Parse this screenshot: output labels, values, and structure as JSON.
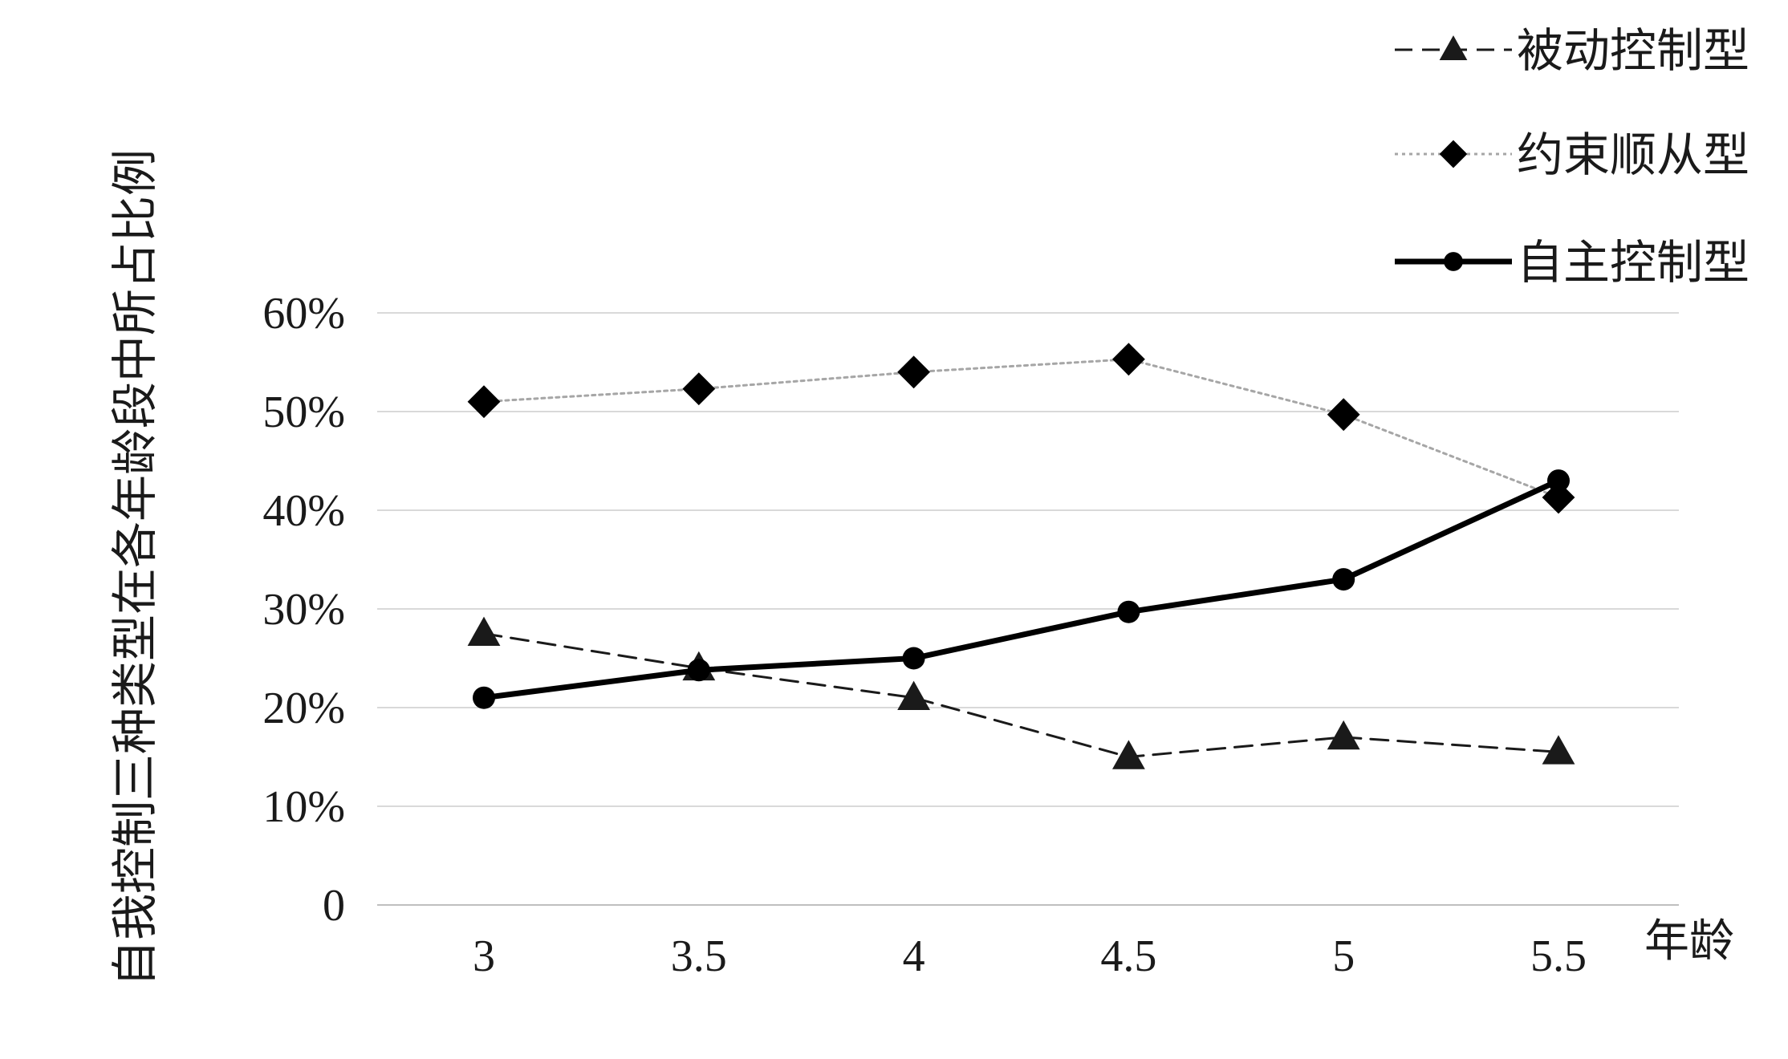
{
  "chart_data": {
    "type": "line",
    "xlabel": "年龄",
    "ylabel": "自我控制三种类型在各年龄段中所占比例",
    "categories": [
      "3",
      "3.5",
      "4",
      "4.5",
      "5",
      "5.5"
    ],
    "y_ticks": [
      "0",
      "10%",
      "20%",
      "30%",
      "40%",
      "50%",
      "60%"
    ],
    "ylim": [
      0,
      60
    ],
    "grid": true,
    "legend_position": "top-right",
    "series": [
      {
        "name": "被动控制型",
        "values": [
          27.5,
          24,
          21,
          15,
          17,
          15.5
        ],
        "color": "#1a1a1a",
        "line_style": "dashed",
        "marker": "triangle"
      },
      {
        "name": "约束顺从型",
        "values": [
          51,
          52.3,
          54,
          55.3,
          49.7,
          41.3
        ],
        "color": "#a6a6a6",
        "marker_color": "#000000",
        "line_style": "dotted",
        "marker": "diamond"
      },
      {
        "name": "自主控制型",
        "values": [
          21,
          23.8,
          25,
          29.7,
          33,
          43
        ],
        "color": "#000000",
        "line_style": "solid-thick",
        "marker": "circle"
      }
    ]
  }
}
